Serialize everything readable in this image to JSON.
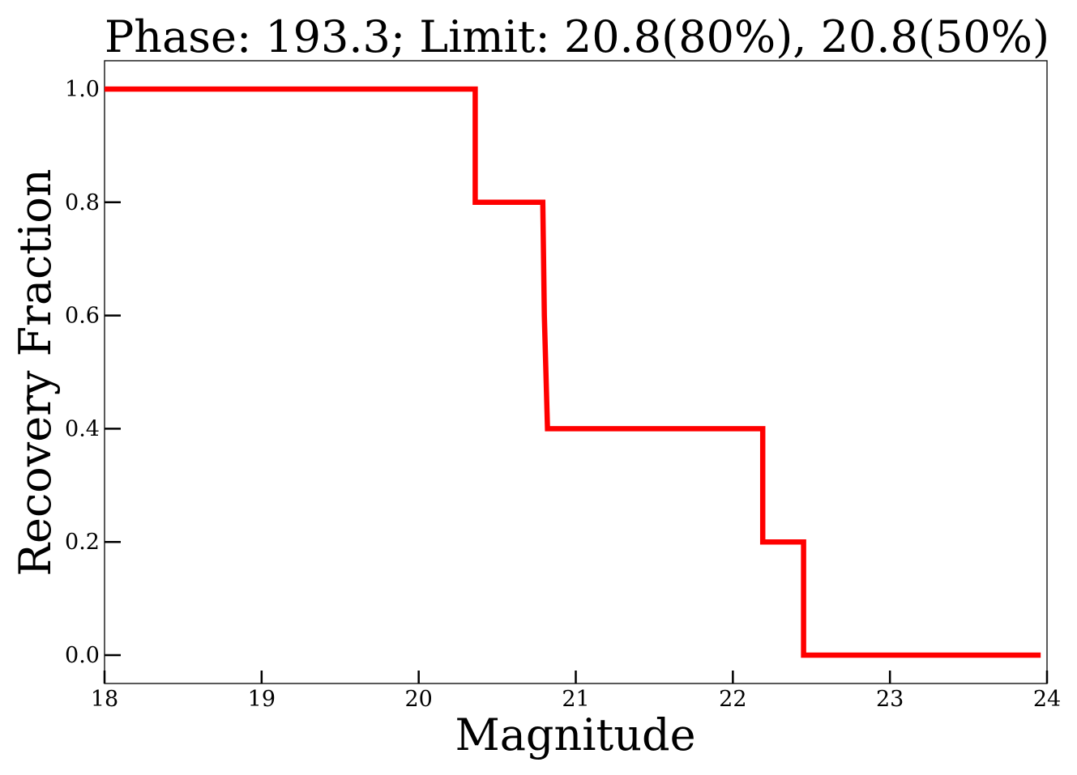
{
  "chart_data": {
    "type": "line",
    "title": "Phase: 193.3; Limit: 20.8(80%), 20.8(50%)",
    "xlabel": "Magnitude",
    "ylabel": "Recovery Fraction",
    "xlim": [
      18,
      24
    ],
    "ylim": [
      -0.05,
      1.05
    ],
    "x_ticks": [
      18,
      19,
      20,
      21,
      22,
      23,
      24
    ],
    "x_tick_labels": [
      "18",
      "19",
      "20",
      "21",
      "22",
      "23",
      "24"
    ],
    "y_ticks": [
      0.0,
      0.2,
      0.4,
      0.6,
      0.8,
      1.0
    ],
    "y_tick_labels": [
      "0.0",
      "0.2",
      "0.4",
      "0.6",
      "0.8",
      "1.0"
    ],
    "grid": false,
    "series": [
      {
        "color": "#ff0000",
        "x": [
          18.0,
          20.36,
          20.36,
          20.79,
          20.8,
          20.82,
          22.19,
          22.19,
          22.45,
          22.45,
          23.96
        ],
        "y": [
          1.0,
          1.0,
          0.8,
          0.8,
          0.6,
          0.4,
          0.4,
          0.2,
          0.2,
          0.0,
          0.0
        ]
      }
    ]
  }
}
